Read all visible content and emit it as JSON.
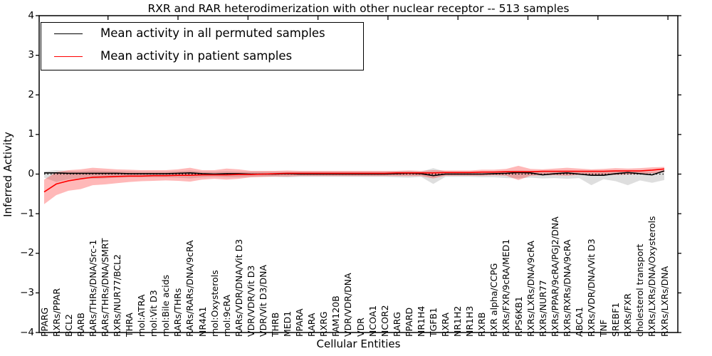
{
  "figure": {
    "title": "RXR and RAR heterodimerization with other nuclear receptor -- 513 samples",
    "xlabel": "Cellular Entities",
    "ylabel": "Inferred Activity"
  },
  "axes": {
    "y_tick_labels": [
      "4",
      "3",
      "2",
      "1",
      "0",
      "−1",
      "−2",
      "−3",
      "−4"
    ],
    "y_tick_values": [
      4,
      3,
      2,
      1,
      0,
      -1,
      -2,
      -3,
      -4
    ]
  },
  "colors": {
    "permuted_line": "#000000",
    "patient_line": "#ff0000",
    "permuted_band": "rgba(0,0,0,0.13)",
    "patient_band": "rgba(255,0,0,0.28)",
    "zero_line": "#000000"
  },
  "chart_data": {
    "type": "line",
    "title": "RXR and RAR heterodimerization with other nuclear receptor -- 513 samples",
    "xlabel": "Cellular Entities",
    "ylabel": "Inferred Activity",
    "ylim": [
      -4,
      4
    ],
    "grid": false,
    "legend_position": "upper left",
    "zero_line_style": "dotted",
    "categories": [
      "PPARG",
      "RXRs/PPAR",
      "BCL2",
      "RARB",
      "RARs/THRs/DNA/Src-1",
      "RARs/THRs/DNA/SMRT",
      "RXRs/NUR77/BCL2",
      "THRA",
      "mol:ATRA",
      "mol:Vit D3",
      "mol:Bile acids",
      "RARs/THRs",
      "RARs/RARs/DNA/9cRA",
      "NR4A1",
      "mol:Oxysterols",
      "mol:9cRA",
      "RARs/VDR/DNA/Vit D3",
      "VDR/VDR/Vit D3",
      "VDR/Vit D3/DNA",
      "THRB",
      "MED1",
      "PPARA",
      "RARA",
      "RXRG",
      "FAM120B",
      "VDR/VDR/DNA",
      "VDR",
      "NCOA1",
      "NCOR2",
      "RARG",
      "PPARD",
      "NR1H4",
      "TGFB1",
      "RXRA",
      "NR1H2",
      "NR1H3",
      "RXRB",
      "RXR alpha/CCPG",
      "RXRs/FXR/9cRA/MED1",
      "RPS6KB1",
      "RXRs/LXRs/DNA/9cRA",
      "RXRs/NUR77",
      "RXRs/PPAR/9cRA/PGJ2/DNA",
      "RXRs/RXRs/DNA/9cRA",
      "ABCA1",
      "RXRs/VDR/DNA/Vit D3",
      "TNF",
      "SREBF1",
      "RXRs/FXR",
      "cholesterol transport",
      "RXRs/LXRs/DNA/Oxysterols",
      "RXRs/LXRs/DNA"
    ],
    "series": [
      {
        "name": "Mean activity in all permuted samples",
        "color": "#000000",
        "band_color": "rgba(0,0,0,0.13)",
        "values": [
          0.03,
          0.03,
          0.02,
          0.02,
          0.02,
          0.02,
          0.02,
          0.01,
          0.01,
          0.01,
          0.01,
          0.02,
          0.03,
          0.01,
          0.0,
          0.01,
          0.01,
          0.0,
          0.0,
          0.0,
          0.01,
          0.0,
          0.0,
          0.0,
          0.0,
          0.0,
          0.0,
          0.0,
          0.0,
          0.01,
          0.02,
          0.01,
          -0.04,
          0.0,
          0.0,
          0.0,
          0.0,
          0.01,
          0.02,
          0.04,
          0.03,
          -0.02,
          0.01,
          0.03,
          0.0,
          -0.03,
          -0.03,
          0.01,
          0.04,
          0.01,
          -0.02,
          0.08
        ],
        "band_upper": [
          0.07,
          0.1,
          0.08,
          0.07,
          0.09,
          0.08,
          0.07,
          0.07,
          0.06,
          0.06,
          0.06,
          0.07,
          0.09,
          0.06,
          0.06,
          0.07,
          0.06,
          0.06,
          0.06,
          0.06,
          0.06,
          0.06,
          0.06,
          0.06,
          0.06,
          0.06,
          0.06,
          0.06,
          0.06,
          0.07,
          0.08,
          0.06,
          0.15,
          0.06,
          0.06,
          0.06,
          0.06,
          0.07,
          0.08,
          0.09,
          0.08,
          0.07,
          0.08,
          0.09,
          0.08,
          0.06,
          0.06,
          0.06,
          0.08,
          0.06,
          0.06,
          0.08
        ],
        "band_lower": [
          -0.09,
          -0.2,
          -0.13,
          -0.1,
          -0.12,
          -0.11,
          -0.09,
          -0.08,
          -0.08,
          -0.08,
          -0.08,
          -0.09,
          -0.11,
          -0.08,
          -0.07,
          -0.08,
          -0.08,
          -0.07,
          -0.07,
          -0.07,
          -0.08,
          -0.07,
          -0.07,
          -0.07,
          -0.07,
          -0.07,
          -0.07,
          -0.07,
          -0.07,
          -0.08,
          -0.09,
          -0.07,
          -0.25,
          -0.07,
          -0.07,
          -0.07,
          -0.08,
          -0.08,
          -0.1,
          -0.11,
          -0.09,
          -0.11,
          -0.1,
          -0.12,
          -0.1,
          -0.28,
          -0.13,
          -0.18,
          -0.28,
          -0.16,
          -0.22,
          -0.15
        ]
      },
      {
        "name": "Mean activity in patient samples",
        "color": "#ff0000",
        "band_color": "rgba(255,0,0,0.28)",
        "values": [
          -0.45,
          -0.25,
          -0.17,
          -0.12,
          -0.08,
          -0.07,
          -0.06,
          -0.05,
          -0.05,
          -0.04,
          -0.04,
          -0.03,
          -0.03,
          -0.02,
          -0.02,
          -0.02,
          -0.01,
          -0.01,
          0.0,
          0.01,
          0.02,
          0.02,
          0.02,
          0.02,
          0.02,
          0.02,
          0.02,
          0.02,
          0.02,
          0.03,
          0.03,
          0.03,
          0.03,
          0.04,
          0.04,
          0.04,
          0.05,
          0.05,
          0.06,
          0.06,
          0.06,
          0.07,
          0.07,
          0.07,
          0.07,
          0.07,
          0.07,
          0.08,
          0.08,
          0.08,
          0.1,
          0.13
        ],
        "band_upper": [
          -0.14,
          0.05,
          0.1,
          0.12,
          0.16,
          0.14,
          0.12,
          0.11,
          0.1,
          0.1,
          0.1,
          0.12,
          0.16,
          0.1,
          0.1,
          0.14,
          0.12,
          0.08,
          0.08,
          0.08,
          0.09,
          0.08,
          0.08,
          0.08,
          0.08,
          0.08,
          0.08,
          0.08,
          0.08,
          0.08,
          0.09,
          0.08,
          0.1,
          0.09,
          0.09,
          0.09,
          0.11,
          0.11,
          0.13,
          0.21,
          0.13,
          0.12,
          0.14,
          0.16,
          0.14,
          0.12,
          0.13,
          0.15,
          0.14,
          0.15,
          0.17,
          0.18
        ],
        "band_lower": [
          -0.76,
          -0.53,
          -0.42,
          -0.38,
          -0.28,
          -0.26,
          -0.23,
          -0.2,
          -0.18,
          -0.17,
          -0.16,
          -0.17,
          -0.19,
          -0.14,
          -0.12,
          -0.14,
          -0.12,
          -0.08,
          -0.07,
          -0.06,
          -0.06,
          -0.05,
          -0.05,
          -0.05,
          -0.05,
          -0.05,
          -0.05,
          -0.05,
          -0.05,
          -0.05,
          -0.05,
          -0.05,
          -0.11,
          -0.04,
          -0.04,
          -0.04,
          -0.04,
          -0.03,
          -0.04,
          -0.15,
          -0.04,
          -0.03,
          -0.03,
          -0.04,
          -0.02,
          -0.02,
          -0.02,
          -0.02,
          -0.01,
          0.0,
          0.02,
          0.05
        ]
      }
    ]
  }
}
